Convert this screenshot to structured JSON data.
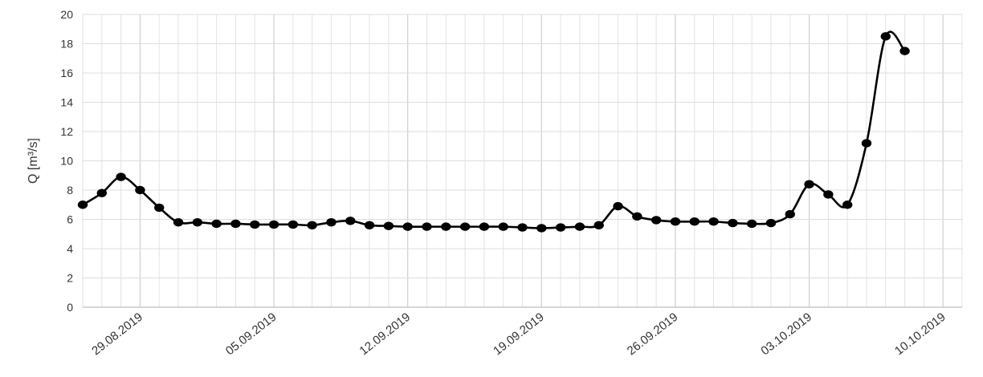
{
  "chart_data": {
    "type": "line",
    "title": "",
    "xlabel": "",
    "ylabel": "Q [m³/s]",
    "ylim": [
      0,
      20
    ],
    "yticks": [
      0,
      2,
      4,
      6,
      8,
      10,
      12,
      14,
      16,
      18,
      20
    ],
    "xlim": [
      "2019-08-26",
      "2019-10-11"
    ],
    "xtick_labels": [
      "29.08.2019",
      "05.09.2019",
      "12.09.2019",
      "19.09.2019",
      "26.09.2019",
      "03.10.2019",
      "10.10.2019"
    ],
    "xtick_dates": [
      "2019-08-29",
      "2019-09-05",
      "2019-09-12",
      "2019-09-19",
      "2019-09-26",
      "2019-10-03",
      "2019-10-10"
    ],
    "grid": true,
    "legend": false,
    "series": [
      {
        "color": "#000000",
        "x": [
          "2019-08-26",
          "2019-08-27",
          "2019-08-28",
          "2019-08-29",
          "2019-08-30",
          "2019-08-31",
          "2019-09-01",
          "2019-09-02",
          "2019-09-03",
          "2019-09-04",
          "2019-09-05",
          "2019-09-06",
          "2019-09-07",
          "2019-09-08",
          "2019-09-09",
          "2019-09-10",
          "2019-09-11",
          "2019-09-12",
          "2019-09-13",
          "2019-09-14",
          "2019-09-15",
          "2019-09-16",
          "2019-09-17",
          "2019-09-18",
          "2019-09-19",
          "2019-09-20",
          "2019-09-21",
          "2019-09-22",
          "2019-09-23",
          "2019-09-24",
          "2019-09-25",
          "2019-09-26",
          "2019-09-27",
          "2019-09-28",
          "2019-09-29",
          "2019-09-30",
          "2019-10-01",
          "2019-10-02",
          "2019-10-03",
          "2019-10-04",
          "2019-10-05",
          "2019-10-06",
          "2019-10-07",
          "2019-10-08"
        ],
        "y": [
          7.0,
          7.8,
          8.9,
          8.0,
          6.8,
          5.8,
          5.8,
          5.7,
          5.7,
          5.65,
          5.65,
          5.65,
          5.6,
          5.8,
          5.9,
          5.6,
          5.55,
          5.5,
          5.5,
          5.5,
          5.5,
          5.5,
          5.5,
          5.45,
          5.4,
          5.45,
          5.5,
          5.6,
          6.9,
          6.2,
          5.95,
          5.85,
          5.85,
          5.85,
          5.75,
          5.7,
          5.75,
          6.35,
          8.4,
          7.7,
          7.0,
          11.2,
          18.5,
          17.5
        ]
      }
    ]
  }
}
